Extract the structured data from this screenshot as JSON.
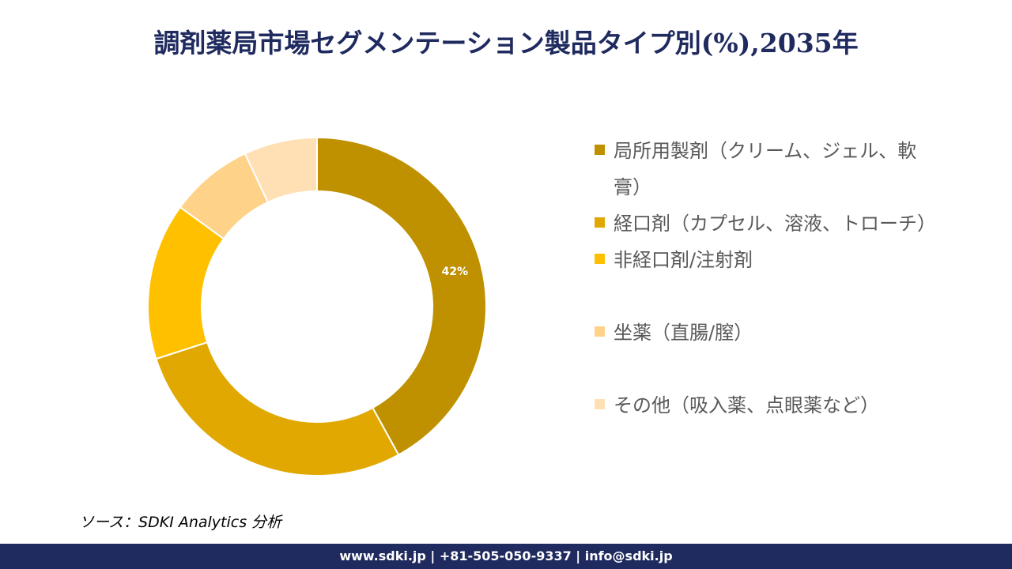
{
  "title": "調剤薬局市場セグメンテーション製品タイプ別(%),2035年",
  "chart_data": {
    "type": "pie",
    "donut": true,
    "title": "調剤薬局市場セグメンテーション製品タイプ別(%),2035年",
    "categories": [
      "局所用製剤（クリーム、ジェル、軟膏）",
      "経口剤（カプセル、溶液、トローチ）",
      "非経口剤/注射剤",
      "坐薬（直腸/膣）",
      "その他（吸入薬、点眼薬など）"
    ],
    "values": [
      42,
      28,
      15,
      8,
      7
    ],
    "colors": [
      "#BF9000",
      "#E0A800",
      "#FFC000",
      "#FFD28A",
      "#FFE0B5"
    ],
    "data_labels": [
      "42%",
      "",
      "",
      "",
      ""
    ],
    "legend_placement": "right"
  },
  "source": "ソース：SDKI Analytics 分析",
  "footer": "www.sdki.jp | +81-505-050-9337 | info@sdki.jp"
}
